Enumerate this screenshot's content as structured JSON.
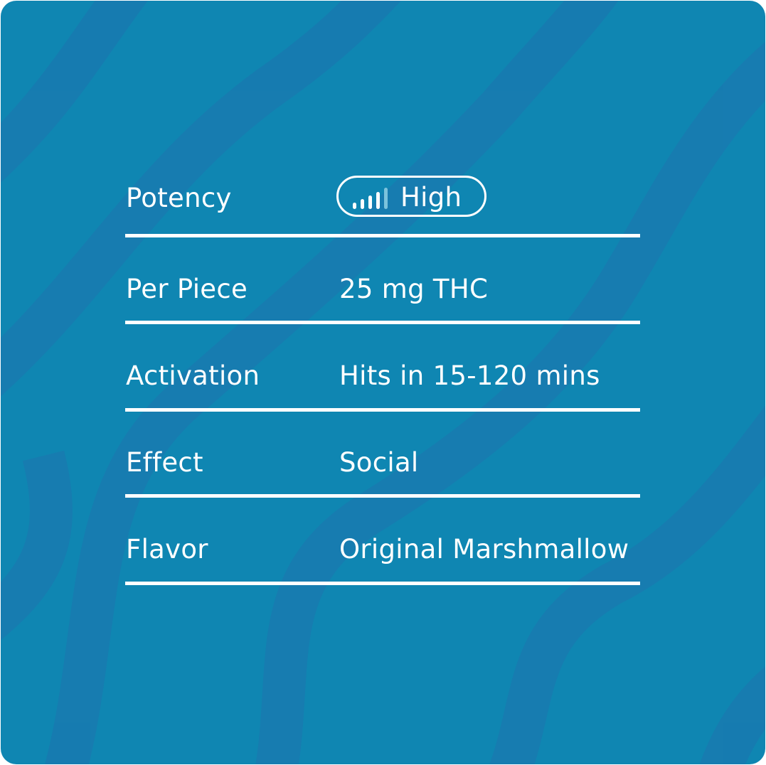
{
  "colors": {
    "background": "#0f86b2",
    "stripe": "#187bb0",
    "text": "#ffffff",
    "bar_inactive": "#7cc3dc"
  },
  "rows": [
    {
      "label": "Potency",
      "value": "High",
      "signal_icon": "signal-strength-icon",
      "level": 4,
      "max_level": 5
    },
    {
      "label": "Per Piece",
      "value": "25 mg THC"
    },
    {
      "label": "Activation",
      "value": "Hits in 15-120 mins"
    },
    {
      "label": "Effect",
      "value": "Social"
    },
    {
      "label": "Flavor",
      "value": "Original Marshmallow"
    }
  ]
}
